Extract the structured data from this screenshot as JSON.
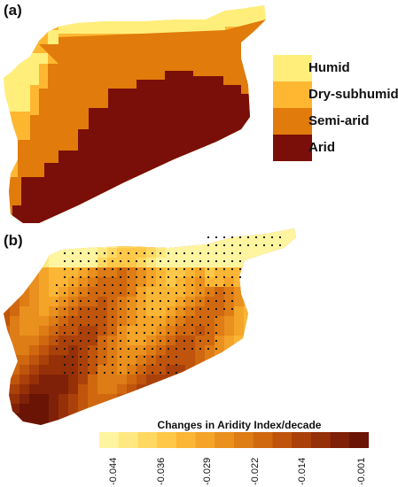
{
  "panel_a": {
    "label": "(a)",
    "legend": [
      {
        "name": "Humid",
        "color": "#ffef7a"
      },
      {
        "name": "Dry-subhumid",
        "color": "#ffb732"
      },
      {
        "name": "Semi-arid",
        "color": "#e07b0c"
      },
      {
        "name": "Arid",
        "color": "#7a0e08"
      }
    ]
  },
  "panel_b": {
    "label": "(b)",
    "colorbar_title": "Changes in Aridity Index/decade",
    "tick_labels": [
      "-0.044",
      "-0.036",
      "-0.029",
      "-0.022",
      "-0.014",
      "-0.001"
    ],
    "colorbar_colors": [
      "#fff5a0",
      "#ffe880",
      "#ffd862",
      "#ffc848",
      "#fbb636",
      "#f4a428",
      "#ea901e",
      "#de7c16",
      "#d06810",
      "#bf540c",
      "#ab410a",
      "#963008",
      "#7f2008",
      "#6a1406"
    ]
  }
}
